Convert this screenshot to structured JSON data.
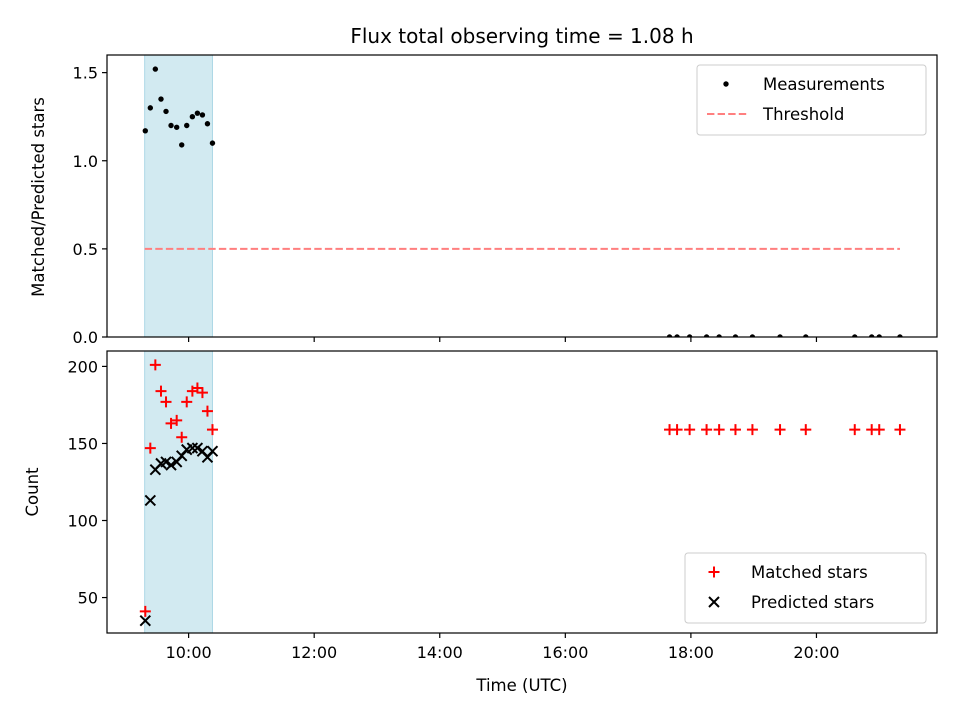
{
  "title": "Flux total observing time = 1.08 h",
  "xlabel": "Time (UTC)",
  "xticks": [
    {
      "value": 10,
      "label": "10:00"
    },
    {
      "value": 12,
      "label": "12:00"
    },
    {
      "value": 14,
      "label": "14:00"
    },
    {
      "value": 16,
      "label": "16:00"
    },
    {
      "value": 18,
      "label": "18:00"
    },
    {
      "value": 20,
      "label": "20:00"
    }
  ],
  "xlim": [
    8.7,
    21.92
  ],
  "chart_data": [
    {
      "type": "scatter",
      "ylabel": "Matched/Predicted stars",
      "ylim": [
        0,
        1.6
      ],
      "yticks": [
        {
          "value": 0.0,
          "label": "0.0"
        },
        {
          "value": 0.5,
          "label": "0.5"
        },
        {
          "value": 1.0,
          "label": "1.0"
        },
        {
          "value": 1.5,
          "label": "1.5"
        }
      ],
      "shaded_span": [
        9.3,
        10.38
      ],
      "shade_color": "#add8e6",
      "series": [
        {
          "name": "Measurements",
          "marker": "dot",
          "color": "#000000",
          "x": [
            9.31,
            9.39,
            9.47,
            9.56,
            9.64,
            9.72,
            9.81,
            9.89,
            9.97,
            10.06,
            10.14,
            10.22,
            10.3,
            10.38,
            17.66,
            17.78,
            17.98,
            18.25,
            18.45,
            18.71,
            18.98,
            19.42,
            19.83,
            20.61,
            20.88,
            21.0,
            21.33
          ],
          "y": [
            1.17,
            1.3,
            1.52,
            1.35,
            1.28,
            1.2,
            1.19,
            1.09,
            1.2,
            1.25,
            1.27,
            1.26,
            1.21,
            1.1,
            0,
            0,
            0,
            0,
            0,
            0,
            0,
            0,
            0,
            0,
            0,
            0,
            0
          ]
        },
        {
          "name": "Threshold",
          "type": "line",
          "style": "dashed",
          "color": "#ff7f7f",
          "x": [
            9.3,
            21.33
          ],
          "y": [
            0.5,
            0.5
          ]
        }
      ],
      "legend": "top-right"
    },
    {
      "type": "scatter",
      "ylabel": "Count",
      "ylim": [
        27,
        210
      ],
      "yticks": [
        {
          "value": 50,
          "label": "50"
        },
        {
          "value": 100,
          "label": "100"
        },
        {
          "value": 150,
          "label": "150"
        },
        {
          "value": 200,
          "label": "200"
        }
      ],
      "shaded_span": [
        9.3,
        10.38
      ],
      "shade_color": "#add8e6",
      "series": [
        {
          "name": "Matched stars",
          "marker": "plus",
          "color": "#ff0000",
          "x": [
            9.31,
            9.39,
            9.47,
            9.56,
            9.64,
            9.72,
            9.81,
            9.89,
            9.97,
            10.06,
            10.14,
            10.22,
            10.3,
            10.38,
            17.66,
            17.78,
            17.98,
            18.25,
            18.45,
            18.71,
            18.98,
            19.42,
            19.83,
            20.61,
            20.88,
            21.0,
            21.33
          ],
          "y": [
            41,
            147,
            201,
            184,
            177,
            163,
            165,
            154,
            177,
            184,
            186,
            183,
            171,
            159,
            159,
            159,
            159,
            159,
            159,
            159,
            159,
            159,
            159,
            159,
            159,
            159,
            159
          ]
        },
        {
          "name": "Predicted stars",
          "marker": "x",
          "color": "#000000",
          "x": [
            9.31,
            9.39,
            9.47,
            9.56,
            9.64,
            9.72,
            9.81,
            9.89,
            9.97,
            10.06,
            10.14,
            10.22,
            10.3,
            10.38
          ],
          "y": [
            35,
            113,
            133,
            137,
            138,
            136,
            138,
            142,
            146,
            147,
            147,
            145,
            141,
            145
          ]
        }
      ],
      "legend": "bottom-right"
    }
  ]
}
